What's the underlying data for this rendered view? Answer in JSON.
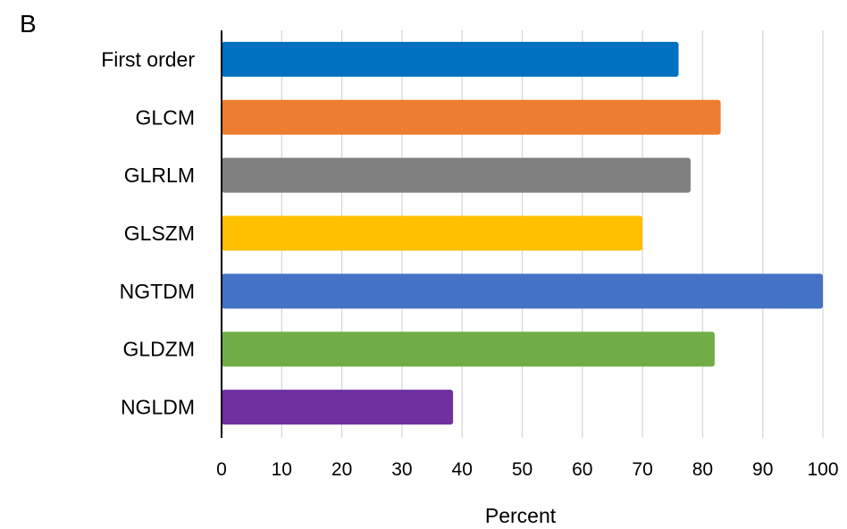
{
  "panel_label": "B",
  "chart_data": {
    "type": "bar",
    "orientation": "horizontal",
    "categories": [
      "First order",
      "GLCM",
      "GLRLM",
      "GLSZM",
      "NGTDM",
      "GLDZM",
      "NGLDM"
    ],
    "values": [
      76,
      83,
      78,
      70,
      100,
      82,
      38.5
    ],
    "colors": [
      "#0070C0",
      "#ED7D31",
      "#808080",
      "#FFC000",
      "#4472C4",
      "#70AD47",
      "#7030A0"
    ],
    "xlabel": "Percent",
    "ylabel": "",
    "xlim": [
      0,
      100
    ],
    "x_ticks": [
      "0",
      "10",
      "20",
      "30",
      "40",
      "50",
      "60",
      "70",
      "80",
      "90",
      "100"
    ],
    "grid": "vertical",
    "legend": "none"
  }
}
